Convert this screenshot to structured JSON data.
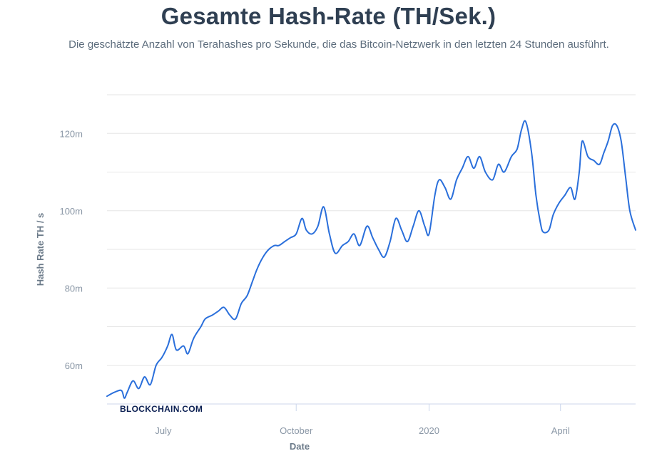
{
  "header": {
    "title": "Gesamte Hash-Rate (TH/Sek.)",
    "subtitle": "Die geschätzte Anzahl von Terahashes pro Sekunde, die das Bitcoin-Netzwerk in den letzten 24 Stunden ausführt."
  },
  "watermark": "BLOCKCHAIN.COM",
  "colors": {
    "line": "#2a6fdb",
    "grid": "#e6e6e6",
    "axis": "#ccd6eb",
    "text": "#2f3f52",
    "watermark": "#0b1f52"
  },
  "chart_data": {
    "type": "line",
    "xlabel": "Date",
    "ylabel": "Hash Rate TH / s",
    "x_axis_type": "date",
    "x_range": [
      "2019-05-23",
      "2020-05-23"
    ],
    "ylim": [
      50000000,
      130000000
    ],
    "y_ticks": [
      60000000,
      80000000,
      100000000,
      120000000
    ],
    "y_tick_labels": [
      "60m",
      "80m",
      "100m",
      "120m"
    ],
    "x_ticks": [
      "2019-07-01",
      "2019-10-01",
      "2020-01-01",
      "2020-04-01"
    ],
    "x_tick_labels": [
      "July",
      "October",
      "2020",
      "April"
    ],
    "grid": true,
    "legend": "none",
    "series": [
      {
        "x": [
          "2019-05-23",
          "2019-05-28",
          "2019-06-02",
          "2019-06-04",
          "2019-06-06",
          "2019-06-10",
          "2019-06-14",
          "2019-06-18",
          "2019-06-22",
          "2019-06-26",
          "2019-06-30",
          "2019-07-04",
          "2019-07-07",
          "2019-07-10",
          "2019-07-15",
          "2019-07-18",
          "2019-07-22",
          "2019-07-27",
          "2019-07-30",
          "2019-08-04",
          "2019-08-08",
          "2019-08-12",
          "2019-08-16",
          "2019-08-20",
          "2019-08-24",
          "2019-08-28",
          "2019-09-01",
          "2019-09-04",
          "2019-09-08",
          "2019-09-12",
          "2019-09-16",
          "2019-09-19",
          "2019-09-23",
          "2019-09-27",
          "2019-10-01",
          "2019-10-05",
          "2019-10-08",
          "2019-10-12",
          "2019-10-16",
          "2019-10-20",
          "2019-10-24",
          "2019-10-28",
          "2019-11-02",
          "2019-11-06",
          "2019-11-10",
          "2019-11-14",
          "2019-11-19",
          "2019-11-23",
          "2019-11-27",
          "2019-12-01",
          "2019-12-05",
          "2019-12-09",
          "2019-12-13",
          "2019-12-17",
          "2019-12-21",
          "2019-12-25",
          "2019-12-29",
          "2020-01-01",
          "2020-01-05",
          "2020-01-08",
          "2020-01-12",
          "2020-01-16",
          "2020-01-20",
          "2020-01-24",
          "2020-01-28",
          "2020-02-01",
          "2020-02-05",
          "2020-02-09",
          "2020-02-14",
          "2020-02-18",
          "2020-02-22",
          "2020-02-27",
          "2020-03-02",
          "2020-03-05",
          "2020-03-08",
          "2020-03-12",
          "2020-03-15",
          "2020-03-18",
          "2020-03-20",
          "2020-03-24",
          "2020-03-27",
          "2020-03-31",
          "2020-04-04",
          "2020-04-08",
          "2020-04-11",
          "2020-04-14",
          "2020-04-16",
          "2020-04-20",
          "2020-04-24",
          "2020-04-28",
          "2020-05-01",
          "2020-05-04",
          "2020-05-07",
          "2020-05-10",
          "2020-05-13",
          "2020-05-16",
          "2020-05-19",
          "2020-05-23"
        ],
        "values": [
          52.0,
          53.0,
          53.5,
          51.5,
          53.0,
          56.0,
          54.0,
          57.0,
          55.0,
          60.0,
          62.0,
          65.0,
          68.0,
          64.0,
          65.0,
          63.0,
          67.0,
          70.0,
          72.0,
          73.0,
          74.0,
          75.0,
          73.0,
          72.0,
          76.0,
          78.0,
          82.0,
          85.0,
          88.0,
          90.0,
          91.0,
          91.0,
          92.0,
          93.0,
          94.0,
          98.0,
          95.0,
          94.0,
          96.0,
          101.0,
          94.0,
          89.0,
          91.0,
          92.0,
          94.0,
          91.0,
          96.0,
          93.0,
          90.0,
          88.0,
          92.0,
          98.0,
          95.0,
          92.0,
          96.0,
          100.0,
          96.0,
          94.0,
          104.0,
          108.0,
          106.0,
          103.0,
          108.0,
          111.0,
          114.0,
          111.0,
          114.0,
          110.0,
          108.0,
          112.0,
          110.0,
          114.0,
          116.0,
          121.0,
          123.0,
          115.0,
          104.0,
          97.0,
          94.5,
          95.0,
          99.0,
          102.0,
          104.0,
          106.0,
          103.0,
          110.0,
          118.0,
          114.0,
          113.0,
          112.0,
          115.0,
          118.0,
          122.0,
          122.0,
          118.0,
          109.0,
          100.0,
          95.0
        ],
        "unit": "m"
      }
    ]
  }
}
